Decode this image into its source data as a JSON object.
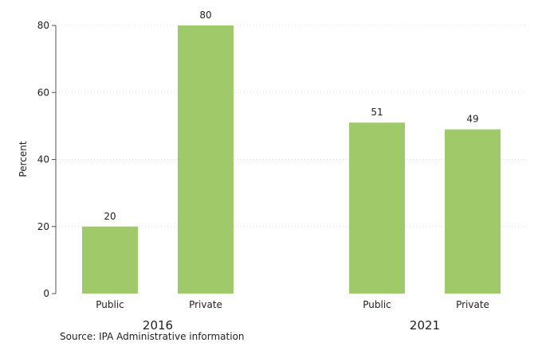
{
  "chart_data": {
    "type": "bar",
    "ylabel": "Percent",
    "ylim": [
      0,
      80
    ],
    "yticks": [
      0,
      20,
      40,
      60,
      80
    ],
    "grid": true,
    "groups": [
      {
        "label": "2016",
        "categories": [
          "Public",
          "Private"
        ],
        "values": [
          20,
          80
        ]
      },
      {
        "label": "2021",
        "categories": [
          "Public",
          "Private"
        ],
        "values": [
          51,
          49
        ]
      }
    ],
    "bar_color": "#a0c96a",
    "grid_color": "#d9d9d9"
  },
  "source": "Source: IPA Administrative information"
}
